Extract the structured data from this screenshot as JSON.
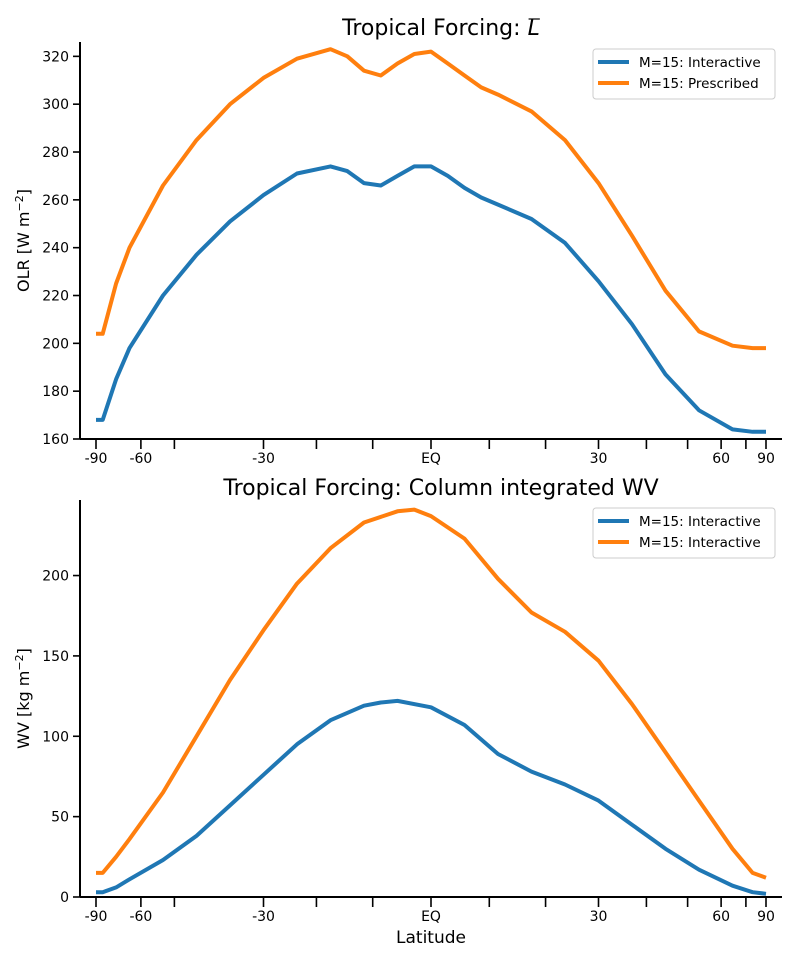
{
  "chart_data": [
    {
      "type": "line",
      "title": "Tropical Forcing: L",
      "title_overline": "L",
      "title_prefix": "Tropical Forcing: ",
      "ylabel": "OLR [W m",
      "ylabel_sup": "−2",
      "ylabel_end": "]",
      "xlabel": "",
      "xlim": [
        -1,
        1
      ],
      "x_tick_positions": [
        -1,
        -0.866,
        -0.766,
        -0.5,
        -0.342,
        -0.174,
        0,
        0.174,
        0.342,
        0.5,
        0.643,
        0.766,
        0.866,
        0.94,
        1
      ],
      "x_tick_labels": [
        {
          "x": -1,
          "label": "-90"
        },
        {
          "x": -0.866,
          "label": "-60"
        },
        {
          "x": -0.5,
          "label": "-30"
        },
        {
          "x": 0,
          "label": "EQ"
        },
        {
          "x": 0.5,
          "label": "30"
        },
        {
          "x": 0.866,
          "label": "60"
        },
        {
          "x": 1,
          "label": "90"
        }
      ],
      "ylim": [
        160,
        326
      ],
      "y_ticks": [
        160,
        180,
        200,
        220,
        240,
        260,
        280,
        300,
        320
      ],
      "legend_position": "top-right",
      "series": [
        {
          "name": "M=15: Interactive",
          "color": "#1f77b4",
          "x": [
            -1.0,
            -0.98,
            -0.94,
            -0.9,
            -0.8,
            -0.7,
            -0.6,
            -0.5,
            -0.4,
            -0.3,
            -0.25,
            -0.2,
            -0.15,
            -0.1,
            -0.05,
            0.0,
            0.05,
            0.1,
            0.15,
            0.2,
            0.3,
            0.4,
            0.5,
            0.6,
            0.7,
            0.8,
            0.9,
            0.96,
            1.0
          ],
          "y": [
            168,
            168,
            185,
            198,
            220,
            237,
            251,
            262,
            271,
            274,
            272,
            267,
            266,
            270,
            274,
            274,
            270,
            265,
            261,
            258,
            252,
            242,
            226,
            208,
            187,
            172,
            164,
            163,
            163
          ]
        },
        {
          "name": "M=15: Prescribed",
          "color": "#ff7f0e",
          "x": [
            -1.0,
            -0.98,
            -0.94,
            -0.9,
            -0.8,
            -0.7,
            -0.6,
            -0.5,
            -0.4,
            -0.3,
            -0.25,
            -0.2,
            -0.15,
            -0.1,
            -0.05,
            0.0,
            0.05,
            0.1,
            0.15,
            0.2,
            0.3,
            0.4,
            0.5,
            0.6,
            0.7,
            0.8,
            0.9,
            0.96,
            1.0
          ],
          "y": [
            204,
            204,
            225,
            240,
            266,
            285,
            300,
            311,
            319,
            323,
            320,
            314,
            312,
            317,
            321,
            322,
            317,
            312,
            307,
            304,
            297,
            285,
            267,
            245,
            222,
            205,
            199,
            198,
            198
          ]
        }
      ]
    },
    {
      "type": "line",
      "title": "Tropical Forcing: Column integrated WV",
      "ylabel": "WV [kg m",
      "ylabel_sup": "−2",
      "ylabel_end": "]",
      "xlabel": "Latitude",
      "xlim": [
        -1,
        1
      ],
      "x_tick_positions": [
        -1,
        -0.866,
        -0.766,
        -0.5,
        -0.342,
        -0.174,
        0,
        0.174,
        0.342,
        0.5,
        0.643,
        0.766,
        0.866,
        0.94,
        1
      ],
      "x_tick_labels": [
        {
          "x": -1,
          "label": "-90"
        },
        {
          "x": -0.866,
          "label": "-60"
        },
        {
          "x": -0.5,
          "label": "-30"
        },
        {
          "x": 0,
          "label": "EQ"
        },
        {
          "x": 0.5,
          "label": "30"
        },
        {
          "x": 0.866,
          "label": "60"
        },
        {
          "x": 1,
          "label": "90"
        }
      ],
      "ylim": [
        0,
        247
      ],
      "y_ticks": [
        0,
        50,
        100,
        150,
        200
      ],
      "legend_position": "top-right",
      "series": [
        {
          "name": "M=15: Interactive",
          "color": "#1f77b4",
          "x": [
            -1.0,
            -0.98,
            -0.94,
            -0.9,
            -0.8,
            -0.7,
            -0.6,
            -0.5,
            -0.4,
            -0.3,
            -0.2,
            -0.15,
            -0.1,
            0.0,
            0.1,
            0.2,
            0.3,
            0.4,
            0.5,
            0.6,
            0.7,
            0.8,
            0.9,
            0.96,
            1.0
          ],
          "y": [
            3,
            3,
            6,
            11,
            23,
            38,
            57,
            76,
            95,
            110,
            119,
            121,
            122,
            118,
            107,
            89,
            78,
            70,
            60,
            45,
            30,
            17,
            7,
            3,
            2
          ]
        },
        {
          "name": "M=15: Interactive",
          "color": "#ff7f0e",
          "x": [
            -1.0,
            -0.98,
            -0.94,
            -0.9,
            -0.8,
            -0.7,
            -0.6,
            -0.5,
            -0.4,
            -0.3,
            -0.2,
            -0.1,
            -0.05,
            0.0,
            0.1,
            0.2,
            0.3,
            0.4,
            0.5,
            0.6,
            0.7,
            0.8,
            0.9,
            0.96,
            1.0
          ],
          "y": [
            15,
            15,
            25,
            36,
            65,
            100,
            135,
            166,
            195,
            217,
            233,
            240,
            241,
            237,
            223,
            198,
            177,
            165,
            147,
            120,
            90,
            60,
            30,
            15,
            12
          ]
        }
      ]
    }
  ]
}
